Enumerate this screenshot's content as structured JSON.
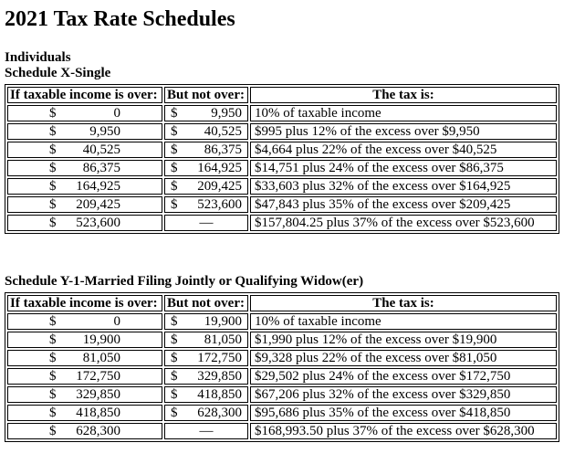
{
  "title": "2021 Tax Rate Schedules",
  "individuals_label": "Individuals",
  "currency_symbol": "$",
  "no_upper_limit_symbol": "—",
  "colors": {
    "text": "#000000",
    "border": "#000000",
    "background": "#ffffff"
  },
  "schedules": [
    {
      "heading": "Schedule X-Single",
      "columns": {
        "over": "If taxable income is over:",
        "not_over": "But not over:",
        "tax": "The tax is:"
      },
      "rows": [
        {
          "over": "0",
          "not_over": "9,950",
          "tax": "10% of taxable income"
        },
        {
          "over": "9,950",
          "not_over": "40,525",
          "tax": "$995 plus 12% of the excess over $9,950"
        },
        {
          "over": "40,525",
          "not_over": "86,375",
          "tax": "$4,664 plus 22% of the excess over $40,525"
        },
        {
          "over": "86,375",
          "not_over": "164,925",
          "tax": "$14,751 plus 24% of the excess over $86,375"
        },
        {
          "over": "164,925",
          "not_over": "209,425",
          "tax": "$33,603 plus 32% of the excess over $164,925"
        },
        {
          "over": "209,425",
          "not_over": "523,600",
          "tax": "$47,843 plus 35% of the excess over $209,425"
        },
        {
          "over": "523,600",
          "not_over": null,
          "tax": "$157,804.25 plus 37% of the excess over $523,600"
        }
      ]
    },
    {
      "heading": "Schedule Y-1-Married Filing Jointly or Qualifying Widow(er)",
      "columns": {
        "over": "If taxable income is over:",
        "not_over": "But not over:",
        "tax": "The tax is:"
      },
      "rows": [
        {
          "over": "0",
          "not_over": "19,900",
          "tax": "10% of taxable income"
        },
        {
          "over": "19,900",
          "not_over": "81,050",
          "tax": "$1,990 plus 12% of the excess over $19,900"
        },
        {
          "over": "81,050",
          "not_over": "172,750",
          "tax": "$9,328 plus 22% of the excess over $81,050"
        },
        {
          "over": "172,750",
          "not_over": "329,850",
          "tax": "$29,502 plus 24% of the excess over $172,750"
        },
        {
          "over": "329,850",
          "not_over": "418,850",
          "tax": "$67,206 plus 32% of the excess over $329,850"
        },
        {
          "over": "418,850",
          "not_over": "628,300",
          "tax": "$95,686 plus 35% of the excess over $418,850"
        },
        {
          "over": "628,300",
          "not_over": null,
          "tax": "$168,993.50 plus 37% of the excess over $628,300"
        }
      ]
    }
  ]
}
